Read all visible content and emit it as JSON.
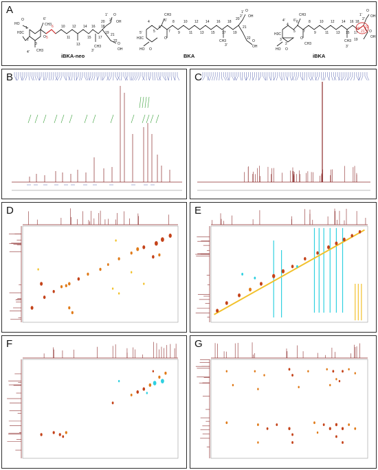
{
  "figure": {
    "panels": [
      {
        "label": "A",
        "type": "chemical-structures"
      },
      {
        "label": "B",
        "type": "1H-NMR spectrum"
      },
      {
        "label": "C",
        "type": "13C-NMR spectrum"
      },
      {
        "label": "D",
        "type": "2D NMR"
      },
      {
        "label": "E",
        "type": "2D NMR"
      },
      {
        "label": "F",
        "type": "2D NMR"
      },
      {
        "label": "G",
        "type": "2D NMR"
      }
    ],
    "molecules": [
      {
        "name": "iBKA-neo",
        "highlight": [
          "5",
          "6"
        ]
      },
      {
        "name": "BKA",
        "highlight": []
      },
      {
        "name": "iBKA",
        "highlight": [
          "20",
          "21"
        ]
      }
    ],
    "colors": {
      "spectrum_line": "#8b2a2a",
      "integral": "#3ca13c",
      "peak_label": "#2b3b9a",
      "contour_orange": "#e07b1a",
      "contour_red": "#c4431a",
      "contour_cyan": "#2fd0e0",
      "contour_yellow": "#f2c12b",
      "highlight_bond": "#d32f2f"
    },
    "atoms": {
      "ibka_neo": {
        "ho": "HO",
        "o": "O",
        "oh": "OH",
        "ch3": "CH3",
        "h3c": "H3C",
        "n1": "1",
        "n2": "2",
        "n3": "3",
        "n4": "4'",
        "n5": "5'",
        "n6": "6'",
        "c5": "5",
        "c6": "6",
        "c7": "7",
        "c8": "8",
        "c10": "10",
        "c11": "11",
        "c12": "12",
        "c13": "13",
        "c14": "14",
        "c15": "15",
        "c16": "16",
        "c17": "17",
        "c18": "18",
        "c19": "19",
        "c20": "20",
        "c21": "21",
        "c22": "22",
        "c1p": "1'",
        "c2p": "2'",
        "c3p": "3'"
      },
      "bka": {
        "ho": "HO",
        "o": "O",
        "oh": "OH",
        "ch3": "CH3",
        "h3c": "H3C",
        "c4": "4",
        "c5": "5",
        "c6": "6",
        "c7": "7",
        "c8": "8",
        "c9": "9",
        "c10": "10",
        "c11": "11",
        "c12": "12",
        "c13": "13",
        "c14": "14",
        "c15": "15",
        "c16": "16",
        "c17": "17",
        "c18": "18",
        "c19": "19",
        "c20": "20",
        "c21": "21",
        "c22": "22",
        "c3p": "3'",
        "c5p": "5'",
        "c6p": "6'",
        "c1p": "1'",
        "c2p": "2'"
      },
      "ibka": {
        "ho": "HO",
        "o": "O",
        "oh": "OH",
        "ch3": "CH3",
        "h3c": "H3C",
        "c2": "2",
        "c3": "3",
        "c4": "4",
        "c5": "5",
        "c6": "6",
        "c7": "7",
        "c8": "8",
        "c9": "9",
        "c10": "10",
        "c11": "11",
        "c12": "12",
        "c13": "13",
        "c14": "14",
        "c15": "15",
        "c16": "16",
        "c17": "17",
        "c18": "18",
        "c19": "19",
        "c20": "20",
        "c21": "21",
        "c22": "22",
        "c1p": "1'",
        "c2p": "2'",
        "c3p": "3'",
        "c4p": "4'",
        "c6p": "6'"
      }
    }
  }
}
